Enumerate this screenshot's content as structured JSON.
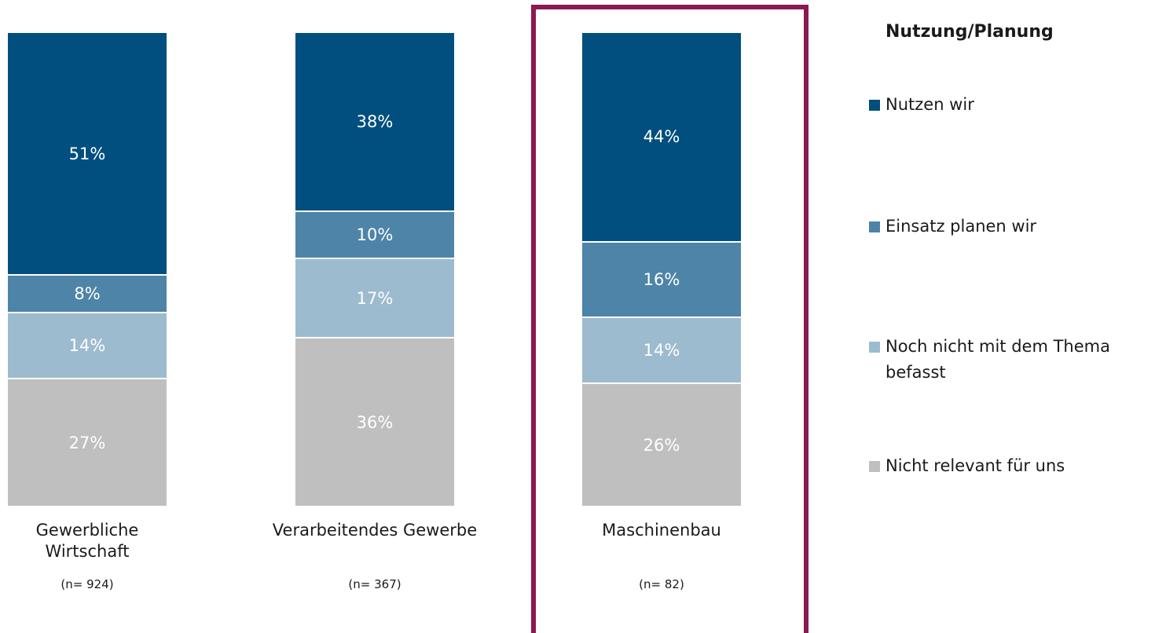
{
  "chart_data": {
    "type": "stacked_bar_100",
    "legend_title": "Nutzung/Planung",
    "categories": [
      "Gewerbliche Wirtschaft",
      "Verarbeitendes Gewerbe",
      "Maschinenbau"
    ],
    "sample_sizes": [
      "(n= 924)",
      "(n= 367)",
      "(n= 82)"
    ],
    "highlight_color": "#8a1a50",
    "series": [
      {
        "name": "Nutzen wir",
        "color": "#004f7e",
        "values": [
          51,
          38,
          44
        ],
        "value_labels": [
          "51%",
          "38%",
          "44%"
        ]
      },
      {
        "name": "Einsatz planen wir",
        "color": "#4e84a8",
        "values": [
          8,
          10,
          16
        ],
        "value_labels": [
          "8%",
          "10%",
          "16%"
        ]
      },
      {
        "name": "Noch nicht mit dem Thema befasst",
        "color": "#9dbbcf",
        "values": [
          14,
          17,
          14
        ],
        "value_labels": [
          "14%",
          "17%",
          "14%"
        ]
      },
      {
        "name": "Nicht relevant für uns",
        "color": "#bfbfbf",
        "values": [
          27,
          36,
          26
        ],
        "value_labels": [
          "27%",
          "36%",
          "26%"
        ]
      }
    ]
  }
}
